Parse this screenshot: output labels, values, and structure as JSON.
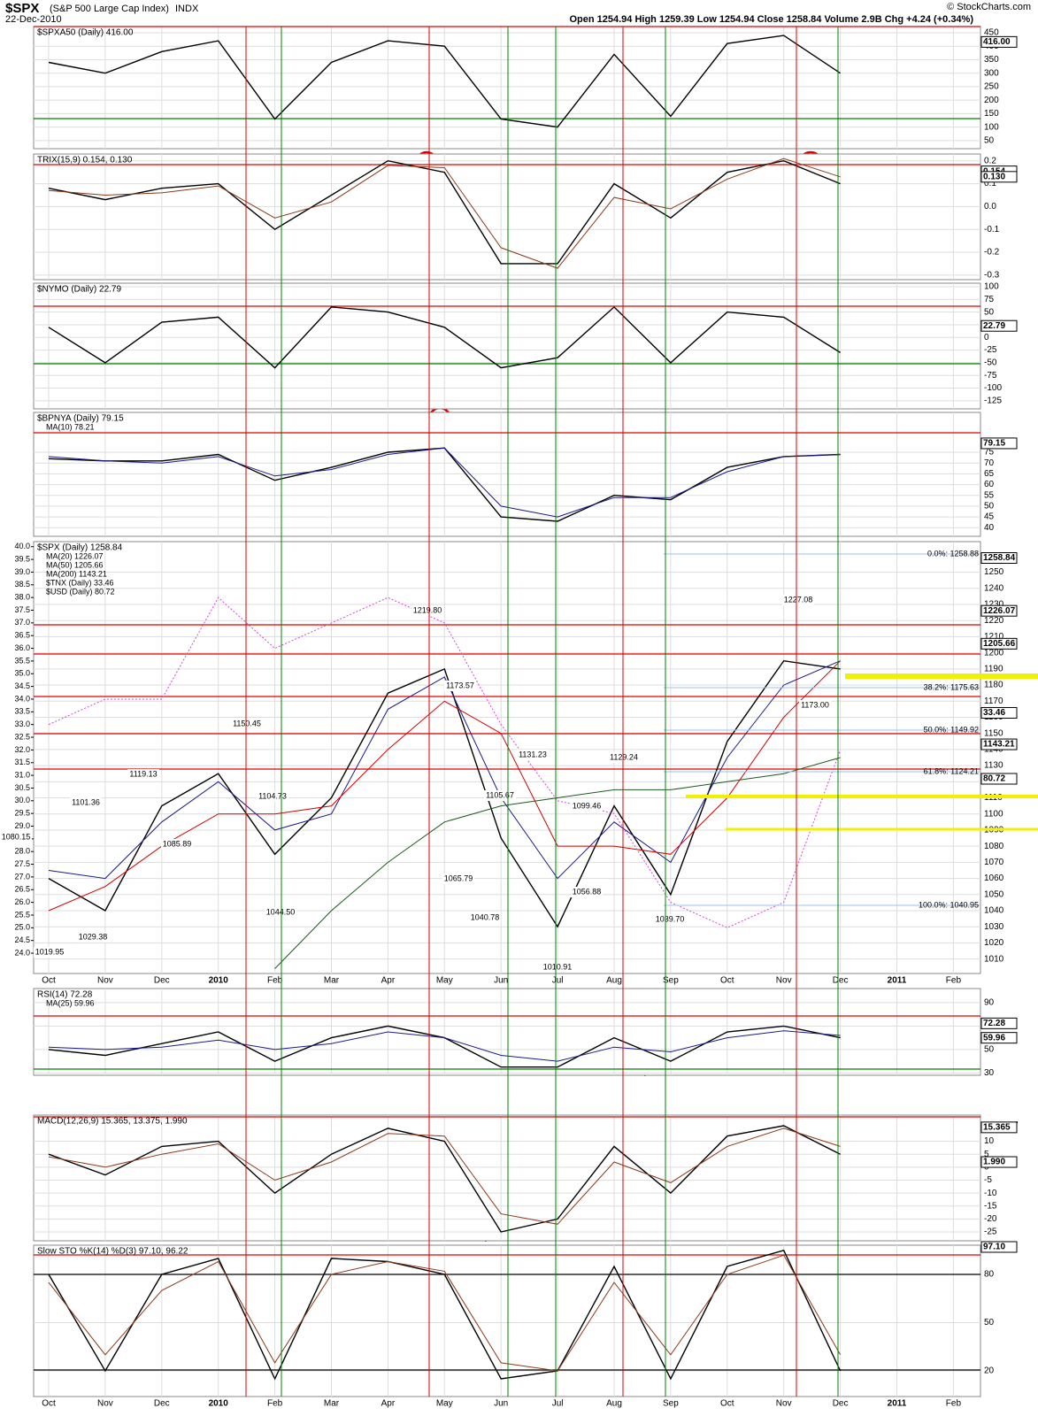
{
  "header": {
    "symbol": "$SPX",
    "name": "(S&P 500 Large Cap Index)",
    "exchange": "INDX",
    "date": "22-Dec-2010",
    "quote": "Open 1254.94 High 1259.39 Low 1254.94 Close 1258.84 Volume 2.9B Chg +4.24 (+0.34%)",
    "credit": "© StockCharts.com"
  },
  "chart_data": [
    {
      "type": "line",
      "title": "$SPXA50 (Daily) 416.00",
      "ylim": [
        20,
        473
      ],
      "yticks": [
        450,
        400,
        350,
        300,
        250,
        200,
        150,
        100,
        50
      ],
      "series": [
        {
          "color": "#000000",
          "values": [
            340,
            300,
            380,
            420,
            130,
            340,
            420,
            400,
            130,
            100,
            370,
            140,
            410,
            440,
            300,
            null,
            null
          ]
        }
      ],
      "last_labels": [
        {
          "value": 416,
          "label": "416.00"
        }
      ]
    },
    {
      "type": "line",
      "title": "TRIX(15,9) 0.154, 0.130",
      "ylim": [
        -0.32,
        0.23
      ],
      "yticks": [
        0.2,
        0.1,
        {
          "value": 0,
          "label": "0.0"
        },
        -0.1,
        -0.2,
        -0.3
      ],
      "series": [
        {
          "color": "#000000",
          "values": [
            0.08,
            0.03,
            0.08,
            0.1,
            -0.1,
            0.05,
            0.2,
            0.15,
            -0.25,
            -0.25,
            0.1,
            -0.05,
            0.15,
            0.2,
            0.1,
            null,
            null
          ]
        },
        {
          "color": "#8b3a1a",
          "values": [
            0.07,
            0.05,
            0.06,
            0.09,
            -0.05,
            0.02,
            0.18,
            0.17,
            -0.18,
            -0.27,
            0.04,
            -0.01,
            0.12,
            0.21,
            0.13,
            null,
            null
          ]
        }
      ],
      "last_labels": [
        {
          "value": 0.154,
          "label": "0.154"
        },
        {
          "value": 0.13,
          "label": "0.130"
        }
      ]
    },
    {
      "type": "line",
      "title": "$NYMO (Daily) 22.79",
      "ylim": [
        -141,
        107
      ],
      "yticks": [
        100,
        75,
        50,
        25,
        0,
        -25,
        -50,
        -75,
        -100,
        -125
      ],
      "series": [
        {
          "color": "#000000",
          "values": [
            20,
            -50,
            30,
            40,
            -60,
            60,
            50,
            20,
            -60,
            -40,
            60,
            -50,
            50,
            40,
            -30,
            null,
            null
          ]
        }
      ],
      "last_labels": [
        {
          "value": 22.79,
          "label": "22.79"
        }
      ]
    },
    {
      "type": "line",
      "title": "$BPNYA (Daily) 79.15",
      "ylim": [
        36,
        93.5
      ],
      "yticks": [
        75,
        70,
        65,
        60,
        55,
        50,
        45,
        40
      ],
      "series": [
        {
          "color": "#000000",
          "values": [
            72,
            71,
            71,
            74,
            62,
            68,
            75,
            77,
            45,
            43,
            55,
            53,
            68,
            73,
            74,
            null,
            null
          ]
        },
        {
          "name": "MA(10) 78.21",
          "color": "#1a1a8c",
          "values": [
            73,
            71,
            70,
            73,
            64,
            67,
            74,
            77,
            50,
            45,
            54,
            54,
            66,
            73,
            74,
            null,
            null
          ]
        }
      ],
      "last_labels": [
        {
          "value": 79.15,
          "label": "79.15"
        }
      ]
    },
    {
      "type": "line",
      "title": "$SPX (Daily) 1258.84",
      "ylim": [
        1001,
        1269
      ],
      "y2lim": [
        23.2,
        40.2
      ],
      "categories": [
        "Oct",
        "Nov",
        "Dec",
        "2010",
        "Feb",
        "Mar",
        "Apr",
        "May",
        "Jun",
        "Jul",
        "Aug",
        "Sep",
        "Oct",
        "Nov",
        "Dec",
        "2011",
        "Feb"
      ],
      "yticks": [
        1250,
        1240,
        1230,
        1220,
        1210,
        1200,
        1190,
        1180,
        1170,
        1160,
        1150,
        1140,
        1130,
        1120,
        1110,
        1100,
        1090,
        1080,
        1070,
        1060,
        1050,
        1040,
        1030,
        1020,
        1010
      ],
      "y2ticks": [
        {
          "value": 40,
          "label": "40.0"
        },
        39.5,
        {
          "value": 39,
          "label": "39.0"
        },
        38.5,
        {
          "value": 38,
          "label": "38.0"
        },
        37.5,
        {
          "value": 37,
          "label": "37.0"
        },
        36.5,
        {
          "value": 36,
          "label": "36.0"
        },
        35.5,
        {
          "value": 35,
          "label": "35.0"
        },
        34.5,
        {
          "value": 34,
          "label": "34.0"
        },
        33.5,
        {
          "value": 33,
          "label": "33.0"
        },
        32.5,
        {
          "value": 32,
          "label": "32.0"
        },
        31.5,
        {
          "value": 31,
          "label": "31.0"
        },
        30.5,
        {
          "value": 30,
          "label": "30.0"
        },
        29.5,
        {
          "value": 29,
          "label": "29.0"
        },
        28.5,
        {
          "value": 28,
          "label": "28.0"
        },
        27.5,
        {
          "value": 27,
          "label": "27.0"
        },
        26.5,
        {
          "value": 26,
          "label": "26.0"
        },
        25.5,
        {
          "value": 25,
          "label": "25.0"
        },
        24.5,
        {
          "value": 24,
          "label": "24.0"
        }
      ],
      "series": [
        {
          "color": "#000000",
          "values": [
            1060,
            1040,
            1105,
            1125,
            1075,
            1110,
            1175,
            1190,
            1085,
            1030,
            1105,
            1050,
            1145,
            1195,
            1190,
            null,
            null
          ]
        },
        {
          "name": "MA(20) 1226.07",
          "color": "#1a1a8c",
          "values": [
            1065,
            1060,
            1095,
            1120,
            1090,
            1100,
            1165,
            1185,
            1110,
            1060,
            1095,
            1070,
            1135,
            1180,
            1195,
            null,
            null
          ]
        },
        {
          "name": "MA(50) 1205.66",
          "color": "#d00000",
          "values": [
            1040,
            1055,
            1080,
            1100,
            1100,
            1105,
            1140,
            1170,
            1150,
            1080,
            1080,
            1075,
            1110,
            1160,
            1195,
            null,
            null
          ]
        },
        {
          "name": "MA(200) 1143.21",
          "color": "#1e5a1e",
          "values": [
            null,
            null,
            null,
            null,
            1004,
            1040,
            1070,
            1095,
            1105,
            1110,
            1115,
            1115,
            1120,
            1125,
            1135,
            null,
            null
          ]
        },
        {
          "name": "$TNX (Daily) 33.46",
          "color": "#e040e0",
          "axis": "y2",
          "dashed": true,
          "values": [
            33,
            34,
            34,
            38,
            36,
            37,
            38,
            37,
            33,
            30,
            29.5,
            26,
            25,
            26,
            32,
            null,
            null
          ]
        },
        {
          "name": "$USD (Daily) 80.72",
          "color": "#8b5a3a"
        }
      ],
      "last_labels": [
        {
          "value": 1258.84,
          "label": "1258.84"
        },
        {
          "value": 1226.07,
          "label": "1226.07"
        },
        {
          "value": 1205.66,
          "label": "1205.66"
        },
        {
          "value": 1143.21,
          "label": "1143.21"
        },
        {
          "value": 33.46,
          "label": "33.46",
          "axis": "y2"
        },
        {
          "label": "80.72"
        }
      ],
      "fib_labels": [
        "0.0%: 1258.88",
        "38.2%: 1175.63",
        "50.0%: 1149.92",
        "61.8%: 1124.21",
        "100.0%: 1040.95"
      ],
      "annotations": [
        "1150.45",
        "1219.80",
        "1173.57",
        "1131.23",
        "1129.24",
        "1227.08",
        "1173.00",
        "1119.13",
        "1101.36",
        "1104.73",
        "1085.89",
        "1080.15",
        "1029.38",
        "1019.95",
        "1044.50",
        "1065.79",
        "1040.78",
        "1105.67",
        "1099.46",
        "1056.88",
        "1039.70",
        "1010.91"
      ]
    },
    {
      "type": "line",
      "title": "RSI(14) 72.28",
      "ylim": [
        28,
        102
      ],
      "yticks": [
        90,
        70,
        50,
        30
      ],
      "series": [
        {
          "color": "#000000",
          "values": [
            50,
            45,
            55,
            65,
            40,
            60,
            70,
            60,
            35,
            35,
            60,
            40,
            65,
            70,
            60,
            null,
            null
          ]
        },
        {
          "name": "MA(25) 59.96",
          "color": "#1a1a8c",
          "values": [
            52,
            50,
            52,
            58,
            50,
            55,
            65,
            60,
            45,
            40,
            52,
            48,
            60,
            66,
            62,
            null,
            null
          ]
        }
      ],
      "last_labels": [
        {
          "value": 72.28,
          "label": "72.28"
        },
        {
          "value": 59.96,
          "label": "59.96"
        }
      ]
    },
    {
      "type": "line",
      "title": "MACD(12,26,9) 15.365, 13.375, 1.990",
      "ylim": [
        -28.4,
        20.1
      ],
      "yticks": [
        10,
        5,
        0,
        -5,
        -10,
        -15,
        -20,
        -25
      ],
      "series": [
        {
          "color": "#000000",
          "values": [
            5,
            -3,
            8,
            10,
            -10,
            5,
            15,
            10,
            -25,
            -20,
            8,
            -10,
            12,
            16,
            5,
            null,
            null
          ]
        },
        {
          "color": "#8b3a1a",
          "values": [
            4,
            0,
            5,
            9,
            -5,
            2,
            13,
            12,
            -18,
            -22,
            2,
            -6,
            8,
            15,
            8,
            null,
            null
          ]
        }
      ],
      "last_labels": [
        {
          "value": 15.365,
          "label": "15.365"
        },
        {
          "value": 1.99,
          "label": "1.990"
        }
      ]
    },
    {
      "type": "line",
      "title": "Slow STO %K(14) %D(3) 97.10, 96.22",
      "ylim": [
        4,
        98.2
      ],
      "yticks": [
        80,
        50,
        20
      ],
      "categories": [
        "Oct",
        "Nov",
        "Dec",
        "2010",
        "Feb",
        "Mar",
        "Apr",
        "May",
        "Jun",
        "Jul",
        "Aug",
        "Sep",
        "Oct",
        "Nov",
        "Dec",
        "2011",
        "Feb"
      ],
      "series": [
        {
          "color": "#000000",
          "values": [
            80,
            20,
            80,
            90,
            15,
            90,
            88,
            80,
            15,
            20,
            85,
            15,
            85,
            95,
            20,
            null,
            null
          ]
        },
        {
          "color": "#8b3a1a",
          "values": [
            75,
            30,
            70,
            88,
            25,
            80,
            88,
            82,
            25,
            20,
            75,
            30,
            80,
            92,
            30,
            null,
            null
          ]
        }
      ],
      "last_labels": [
        {
          "value": 97.1,
          "label": "97.10"
        }
      ]
    }
  ]
}
